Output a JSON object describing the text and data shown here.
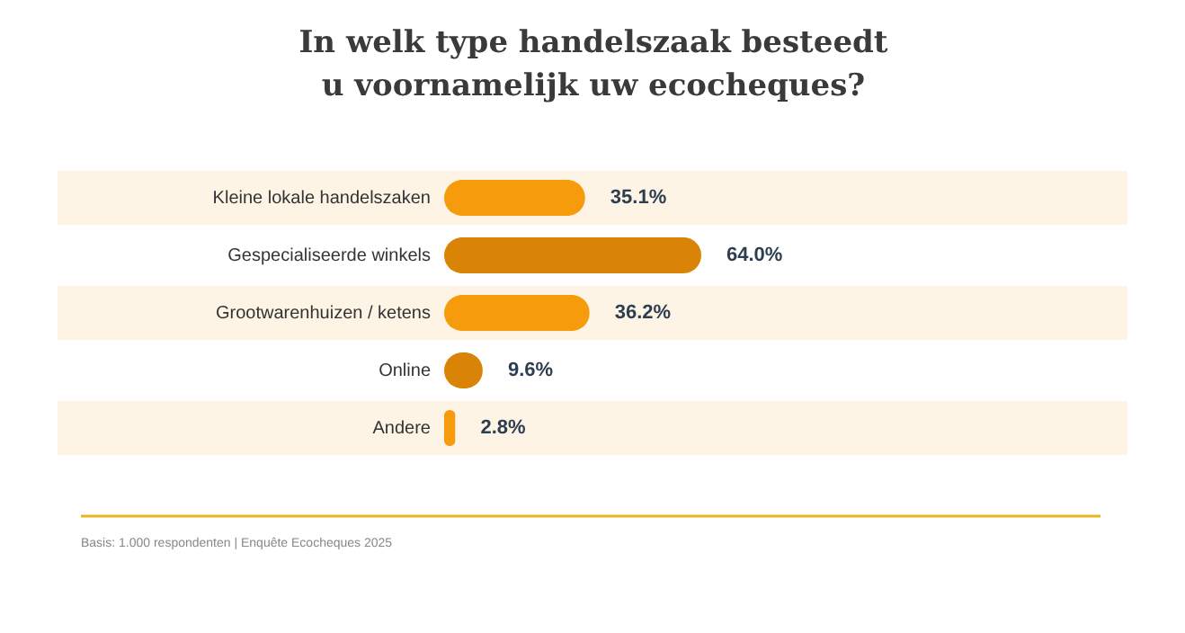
{
  "chart_data": {
    "type": "bar",
    "orientation": "horizontal",
    "title": "In welk type handelszaak besteedt u voornamelijk uw ecocheques?",
    "categories": [
      "Kleine lokale handelszaken",
      "Gespecialiseerde winkels",
      "Grootwarenhuizen / ketens",
      "Online",
      "Andere"
    ],
    "values": [
      35.1,
      64.0,
      36.2,
      9.6,
      2.8
    ],
    "value_labels": [
      "35.1%",
      "64.0%",
      "36.2%",
      "9.6%",
      "2.8%"
    ],
    "colors": [
      "#f59b0c",
      "#d98307",
      "#f59b0c",
      "#d98307",
      "#f59b0c"
    ],
    "bands": [
      {
        "axis": "y",
        "from": "Kleine lokale handelszaken",
        "to": "Kleine lokale handelszaken",
        "color": "#fdf4e6"
      },
      {
        "axis": "y",
        "from": "Grootwarenhuizen / ketens",
        "to": "Grootwarenhuizen / ketens",
        "color": "#fdf4e6"
      },
      {
        "axis": "y",
        "from": "Andere",
        "to": "Andere",
        "color": "#fdf4e6"
      }
    ],
    "annotations": [
      "Basis: 1.000 respondenten  |  Enquête Ecocheques 2025"
    ],
    "grid": false
  }
}
